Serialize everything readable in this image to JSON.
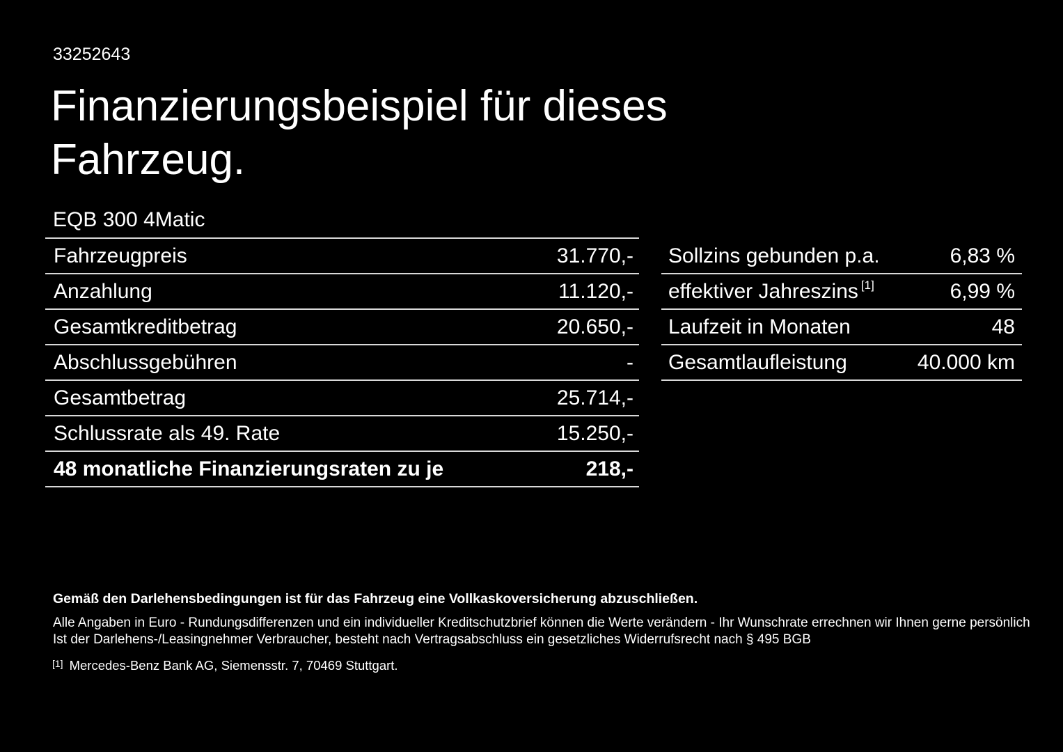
{
  "page": {
    "customer_id": "33252643",
    "title": "Finanzierungsbeispiel für dieses Fahrzeug.",
    "vehicle_model": "EQB 300 4Matic"
  },
  "financing_table": {
    "rows": [
      {
        "label": "Fahrzeugpreis",
        "value": "31.770,-"
      },
      {
        "label": "Anzahlung",
        "value": "11.120,-"
      },
      {
        "label": "Gesamtkreditbetrag",
        "value": "20.650,-"
      },
      {
        "label": "Abschlussgebühren",
        "value": "-"
      },
      {
        "label": "Gesamtbetrag",
        "value": "25.714,-"
      },
      {
        "label": "Schlussrate als 49. Rate",
        "value": "15.250,-"
      },
      {
        "label": "48 monatliche Finanzierungsraten zu je",
        "value": "218,-"
      }
    ]
  },
  "conditions_table": {
    "rows": [
      {
        "label": "Sollzins gebunden p.a.",
        "value": "6,83 %"
      },
      {
        "label": "effektiver Jahreszins",
        "footnote_marker": "[1]",
        "value": "6,99 %"
      },
      {
        "label": "Laufzeit in Monaten",
        "value": "48"
      },
      {
        "label": "Gesamtlaufleistung",
        "value": "40.000 km"
      }
    ]
  },
  "footer": {
    "insurance_note": "Gemäß den Darlehensbedingungen ist für das Fahrzeug eine Vollkaskoversicherung abzuschließen.",
    "disclaimer_line1": "Alle Angaben in Euro - Rundungsdifferenzen und ein individueller Kreditschutzbrief können die Werte verändern - Ihr Wunschrate errechnen wir Ihnen gerne persönlich",
    "disclaimer_line2": "Ist der Darlehens-/Leasingnehmer Verbraucher, besteht nach Vertragsabschluss ein gesetzliches Widerrufsrecht nach § 495 BGB",
    "footnote_marker": "[1]",
    "footnote_text": "Mercedes-Benz Bank AG, Siemensstr. 7, 70469 Stuttgart."
  },
  "colors": {
    "background": "#000000",
    "text": "#ffffff",
    "divider": "#d9d9d9"
  }
}
